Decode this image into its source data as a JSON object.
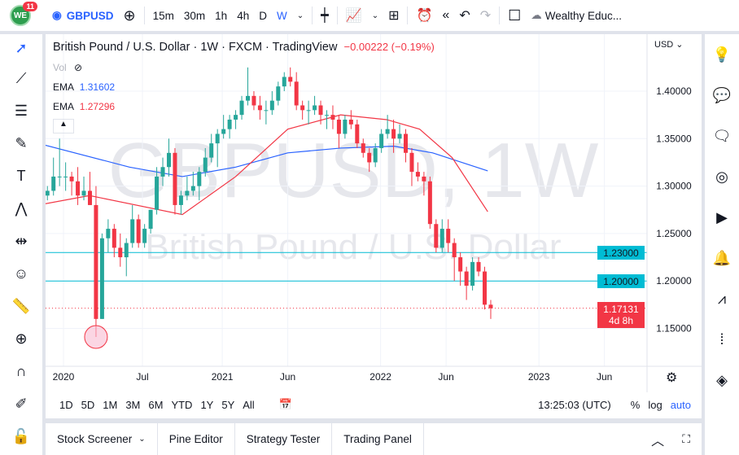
{
  "topbar": {
    "notifications": "11",
    "logo_text": "WE",
    "symbol": "GBPUSD",
    "intervals": [
      "15m",
      "30m",
      "1h",
      "4h",
      "D",
      "W"
    ],
    "active_interval": "W",
    "layout_name": "Wealthy Educ..."
  },
  "legend": {
    "title": "British Pound / U.S. Dollar · 1W · FXCM · TradingView",
    "change": "−0.00222 (−0.19%)",
    "vol_label": "Vol",
    "ema1_label": "EMA",
    "ema1_value": "1.31602",
    "ema2_label": "EMA",
    "ema2_value": "1.27296"
  },
  "watermark": {
    "symbol": "GBPUSD, 1W",
    "name": "British Pound / U.S. Dollar"
  },
  "colors": {
    "up": "#26a69a",
    "down": "#f23645",
    "ema_slow": "#2962ff",
    "ema_fast": "#f23645",
    "hline": "#00bcd4",
    "accent": "#2962ff"
  },
  "price_axis": {
    "currency": "USD",
    "ticks": [
      "1.40000",
      "1.35000",
      "1.30000",
      "1.25000",
      "1.20000",
      "1.15000"
    ],
    "hlines": [
      "1.23000",
      "1.20000"
    ],
    "last_price": "1.17131",
    "countdown": "4d 8h"
  },
  "time_axis": {
    "labels": [
      "2020",
      "Jul",
      "2021",
      "Jun",
      "2022",
      "Jun",
      "2023",
      "Jun"
    ]
  },
  "bottom_toolbar": {
    "ranges": [
      "1D",
      "5D",
      "1M",
      "3M",
      "6M",
      "YTD",
      "1Y",
      "5Y",
      "All"
    ],
    "clock": "13:25:03 (UTC)",
    "percent": "%",
    "log": "log",
    "auto": "auto"
  },
  "bottom_tabs": [
    "Stock Screener",
    "Pine Editor",
    "Strategy Tester",
    "Trading Panel"
  ],
  "chart_data": {
    "type": "candlestick",
    "ylim": [
      1.125,
      1.445
    ],
    "price_ticks": [
      1.4,
      1.35,
      1.3,
      1.25,
      1.2,
      1.15
    ],
    "hlines": [
      1.23,
      1.2
    ],
    "last": 1.17131,
    "candles": [
      [
        "2019-11-04",
        1.285,
        1.295,
        1.28,
        1.29
      ],
      [
        "2019-11-18",
        1.29,
        1.3,
        1.285,
        1.295
      ],
      [
        "2019-12-02",
        1.295,
        1.33,
        1.29,
        1.31
      ],
      [
        "2019-12-16",
        1.31,
        1.35,
        1.3,
        1.31
      ],
      [
        "2019-12-30",
        1.31,
        1.325,
        1.295,
        1.31
      ],
      [
        "2020-01-13",
        1.31,
        1.315,
        1.29,
        1.305
      ],
      [
        "2020-01-27",
        1.305,
        1.32,
        1.28,
        1.29
      ],
      [
        "2020-02-10",
        1.29,
        1.31,
        1.285,
        1.295
      ],
      [
        "2020-02-24",
        1.295,
        1.315,
        1.28,
        1.28
      ],
      [
        "2020-03-09",
        1.28,
        1.3,
        1.141,
        1.16
      ],
      [
        "2020-03-23",
        1.16,
        1.25,
        1.16,
        1.245
      ],
      [
        "2020-04-06",
        1.245,
        1.265,
        1.23,
        1.255
      ],
      [
        "2020-04-20",
        1.255,
        1.26,
        1.225,
        1.235
      ],
      [
        "2020-05-04",
        1.235,
        1.25,
        1.215,
        1.225
      ],
      [
        "2020-05-18",
        1.225,
        1.245,
        1.205,
        1.24
      ],
      [
        "2020-06-01",
        1.24,
        1.28,
        1.235,
        1.265
      ],
      [
        "2020-06-15",
        1.265,
        1.27,
        1.235,
        1.24
      ],
      [
        "2020-06-29",
        1.24,
        1.26,
        1.235,
        1.255
      ],
      [
        "2020-07-13",
        1.255,
        1.275,
        1.25,
        1.275
      ],
      [
        "2020-07-27",
        1.275,
        1.32,
        1.27,
        1.31
      ],
      [
        "2020-08-10",
        1.31,
        1.33,
        1.3,
        1.32
      ],
      [
        "2020-08-24",
        1.32,
        1.35,
        1.31,
        1.335
      ],
      [
        "2020-09-07",
        1.335,
        1.34,
        1.27,
        1.28
      ],
      [
        "2020-09-21",
        1.28,
        1.295,
        1.27,
        1.29
      ],
      [
        "2020-10-05",
        1.29,
        1.31,
        1.285,
        1.295
      ],
      [
        "2020-10-19",
        1.295,
        1.315,
        1.29,
        1.3
      ],
      [
        "2020-11-02",
        1.3,
        1.32,
        1.285,
        1.315
      ],
      [
        "2020-11-16",
        1.315,
        1.34,
        1.31,
        1.33
      ],
      [
        "2020-11-30",
        1.33,
        1.355,
        1.325,
        1.345
      ],
      [
        "2020-12-14",
        1.345,
        1.36,
        1.32,
        1.355
      ],
      [
        "2020-12-28",
        1.355,
        1.375,
        1.35,
        1.36
      ],
      [
        "2021-01-11",
        1.36,
        1.375,
        1.35,
        1.37
      ],
      [
        "2021-01-25",
        1.37,
        1.38,
        1.36,
        1.375
      ],
      [
        "2021-02-08",
        1.375,
        1.395,
        1.37,
        1.39
      ],
      [
        "2021-02-22",
        1.39,
        1.425,
        1.385,
        1.395
      ],
      [
        "2021-03-08",
        1.395,
        1.4,
        1.38,
        1.385
      ],
      [
        "2021-03-22",
        1.385,
        1.395,
        1.37,
        1.38
      ],
      [
        "2021-04-05",
        1.38,
        1.39,
        1.365,
        1.38
      ],
      [
        "2021-04-19",
        1.38,
        1.4,
        1.375,
        1.39
      ],
      [
        "2021-05-03",
        1.39,
        1.41,
        1.385,
        1.405
      ],
      [
        "2021-05-17",
        1.405,
        1.42,
        1.4,
        1.415
      ],
      [
        "2021-05-31",
        1.415,
        1.425,
        1.405,
        1.41
      ],
      [
        "2021-06-14",
        1.41,
        1.42,
        1.38,
        1.385
      ],
      [
        "2021-06-28",
        1.385,
        1.39,
        1.37,
        1.38
      ],
      [
        "2021-07-12",
        1.38,
        1.39,
        1.365,
        1.38
      ],
      [
        "2021-07-26",
        1.38,
        1.395,
        1.375,
        1.385
      ],
      [
        "2021-08-09",
        1.385,
        1.39,
        1.365,
        1.375
      ],
      [
        "2021-08-23",
        1.375,
        1.38,
        1.36,
        1.375
      ],
      [
        "2021-09-06",
        1.375,
        1.385,
        1.36,
        1.37
      ],
      [
        "2021-09-20",
        1.37,
        1.375,
        1.34,
        1.355
      ],
      [
        "2021-10-04",
        1.355,
        1.375,
        1.35,
        1.37
      ],
      [
        "2021-10-18",
        1.37,
        1.38,
        1.36,
        1.365
      ],
      [
        "2021-11-01",
        1.365,
        1.37,
        1.34,
        1.345
      ],
      [
        "2021-11-15",
        1.345,
        1.35,
        1.33,
        1.335
      ],
      [
        "2021-11-29",
        1.335,
        1.34,
        1.315,
        1.325
      ],
      [
        "2021-12-13",
        1.325,
        1.345,
        1.32,
        1.34
      ],
      [
        "2021-12-27",
        1.34,
        1.36,
        1.335,
        1.355
      ],
      [
        "2022-01-10",
        1.355,
        1.375,
        1.35,
        1.36
      ],
      [
        "2022-01-24",
        1.36,
        1.37,
        1.335,
        1.35
      ],
      [
        "2022-02-07",
        1.35,
        1.365,
        1.345,
        1.355
      ],
      [
        "2022-02-21",
        1.355,
        1.36,
        1.325,
        1.335
      ],
      [
        "2022-03-07",
        1.335,
        1.34,
        1.3,
        1.315
      ],
      [
        "2022-03-21",
        1.315,
        1.325,
        1.305,
        1.31
      ],
      [
        "2022-04-04",
        1.31,
        1.315,
        1.29,
        1.305
      ],
      [
        "2022-04-18",
        1.305,
        1.31,
        1.255,
        1.26
      ],
      [
        "2022-05-02",
        1.26,
        1.265,
        1.23,
        1.235
      ],
      [
        "2022-05-16",
        1.235,
        1.265,
        1.23,
        1.255
      ],
      [
        "2022-05-30",
        1.255,
        1.265,
        1.23,
        1.24
      ],
      [
        "2022-06-13",
        1.24,
        1.245,
        1.2,
        1.225
      ],
      [
        "2022-06-27",
        1.225,
        1.23,
        1.195,
        1.21
      ],
      [
        "2022-07-11",
        1.21,
        1.215,
        1.18,
        1.195
      ],
      [
        "2022-07-25",
        1.195,
        1.225,
        1.19,
        1.22
      ],
      [
        "2022-08-08",
        1.22,
        1.225,
        1.205,
        1.21
      ],
      [
        "2022-08-22",
        1.21,
        1.215,
        1.17,
        1.175
      ],
      [
        "2022-09-05",
        1.175,
        1.18,
        1.16,
        1.17131
      ]
    ],
    "ema_slow": [
      [
        "2019-11-04",
        1.345
      ],
      [
        "2020-06-01",
        1.32
      ],
      [
        "2020-10-01",
        1.31
      ],
      [
        "2021-02-01",
        1.32
      ],
      [
        "2021-06-01",
        1.335
      ],
      [
        "2021-10-01",
        1.34
      ],
      [
        "2022-02-01",
        1.342
      ],
      [
        "2022-05-01",
        1.335
      ],
      [
        "2022-09-05",
        1.316
      ]
    ],
    "ema_fast": [
      [
        "2019-11-04",
        1.28
      ],
      [
        "2020-03-01",
        1.29
      ],
      [
        "2020-10-01",
        1.27
      ],
      [
        "2021-02-01",
        1.31
      ],
      [
        "2021-06-01",
        1.36
      ],
      [
        "2021-10-01",
        1.375
      ],
      [
        "2022-01-15",
        1.37
      ],
      [
        "2022-04-01",
        1.36
      ],
      [
        "2022-06-15",
        1.33
      ],
      [
        "2022-09-05",
        1.273
      ]
    ]
  }
}
